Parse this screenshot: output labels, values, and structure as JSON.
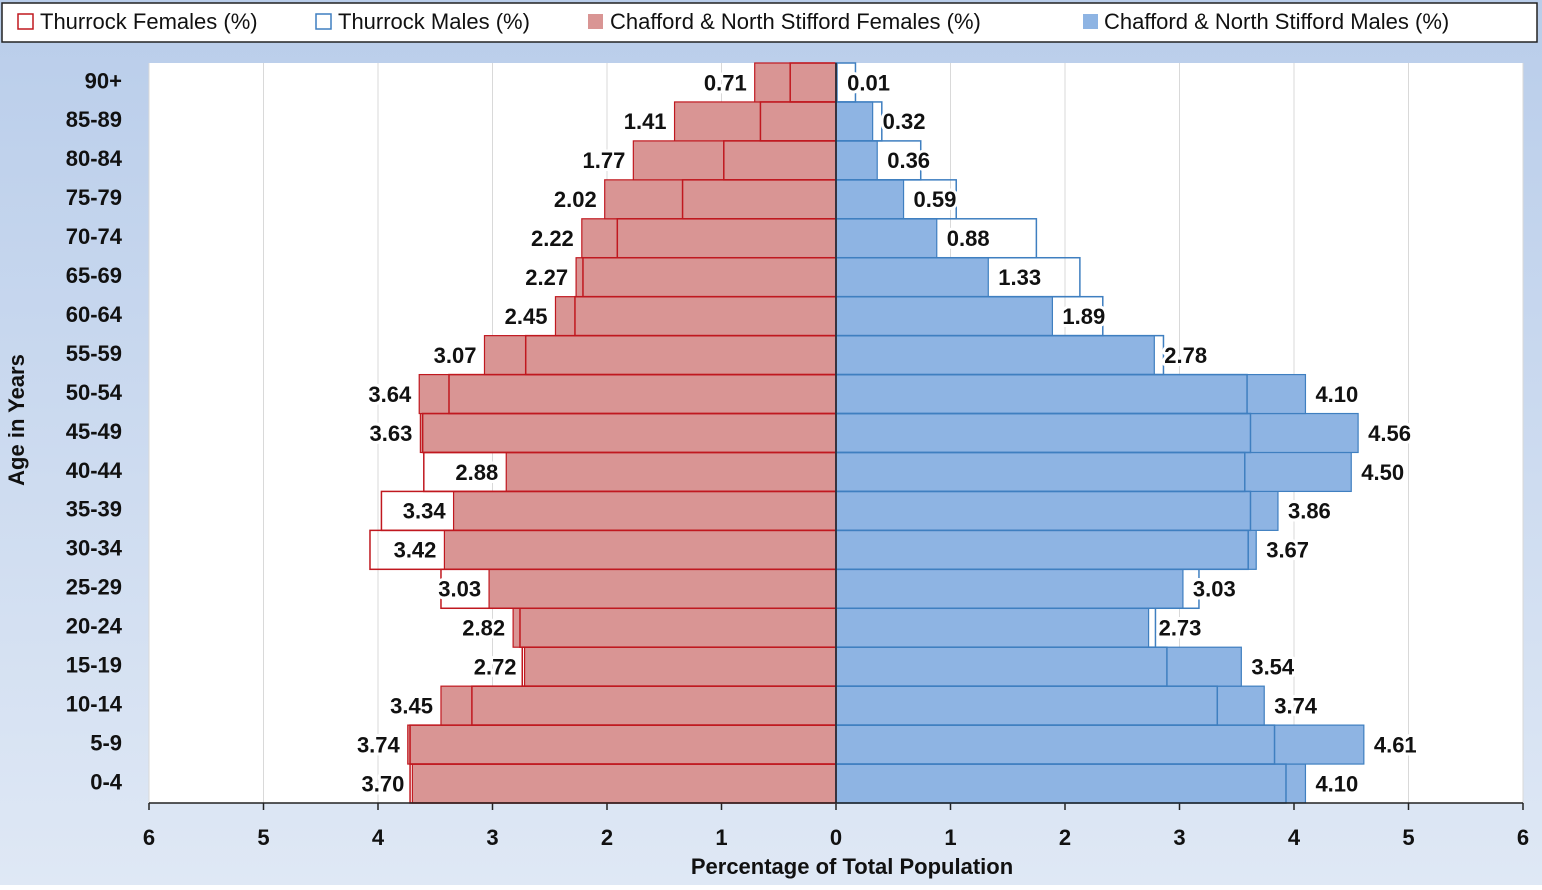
{
  "chart_data": {
    "type": "population_pyramid",
    "x_label": "Percentage of Total Population",
    "y_label": "Age in Years",
    "categories": [
      "0-4",
      "5-9",
      "10-14",
      "15-19",
      "20-24",
      "25-29",
      "30-34",
      "35-39",
      "40-44",
      "45-49",
      "50-54",
      "55-59",
      "60-64",
      "65-69",
      "70-74",
      "75-79",
      "80-84",
      "85-89",
      "90+"
    ],
    "xlim": [
      0,
      6
    ],
    "xticks": [
      0,
      1,
      2,
      3,
      4,
      5,
      6
    ],
    "grid": true,
    "series": [
      {
        "name": "Thurrock Females (%)",
        "color": "#c0181f",
        "style": "outline",
        "side": "left",
        "values": [
          3.72,
          3.72,
          3.18,
          2.74,
          2.76,
          3.45,
          4.07,
          3.97,
          3.6,
          3.61,
          3.38,
          2.71,
          2.28,
          2.21,
          1.91,
          1.34,
          0.98,
          0.66,
          0.4
        ]
      },
      {
        "name": "Thurrock Males (%)",
        "color": "#3f7fc0",
        "style": "outline",
        "side": "right",
        "values": [
          3.93,
          3.83,
          3.33,
          2.89,
          2.79,
          3.17,
          3.6,
          3.62,
          3.57,
          3.62,
          3.59,
          2.86,
          2.33,
          2.13,
          1.75,
          1.05,
          0.74,
          0.4,
          0.17
        ]
      },
      {
        "name": "Chafford & North Stifford Females (%)",
        "color": "#d99594",
        "style": "filled",
        "side": "left",
        "values": [
          3.7,
          3.74,
          3.45,
          2.72,
          2.82,
          3.03,
          3.42,
          3.34,
          2.88,
          3.63,
          3.64,
          3.07,
          2.45,
          2.27,
          2.22,
          2.02,
          1.77,
          1.41,
          0.71
        ],
        "value_labels": [
          "3.70",
          "3.74",
          "3.45",
          "2.72",
          "2.82",
          "3.03",
          "3.42",
          "3.34",
          "2.88",
          "3.63",
          "3.64",
          "3.07",
          "2.45",
          "2.27",
          "2.22",
          "2.02",
          "1.77",
          "1.41",
          "0.71"
        ]
      },
      {
        "name": "Chafford & North Stifford Males (%)",
        "color": "#8eb4e3",
        "style": "filled",
        "side": "right",
        "values": [
          4.1,
          4.61,
          3.74,
          3.54,
          2.73,
          3.03,
          3.67,
          3.86,
          4.5,
          4.56,
          4.1,
          2.78,
          1.89,
          1.33,
          0.88,
          0.59,
          0.36,
          0.32,
          0.01
        ],
        "value_labels": [
          "4.10",
          "4.61",
          "3.74",
          "3.54",
          "2.73",
          "3.03",
          "3.67",
          "3.86",
          "4.50",
          "4.56",
          "4.10",
          "2.78",
          "1.89",
          "1.33",
          "0.88",
          "0.59",
          "0.36",
          "0.32",
          "0.01"
        ]
      }
    ]
  }
}
